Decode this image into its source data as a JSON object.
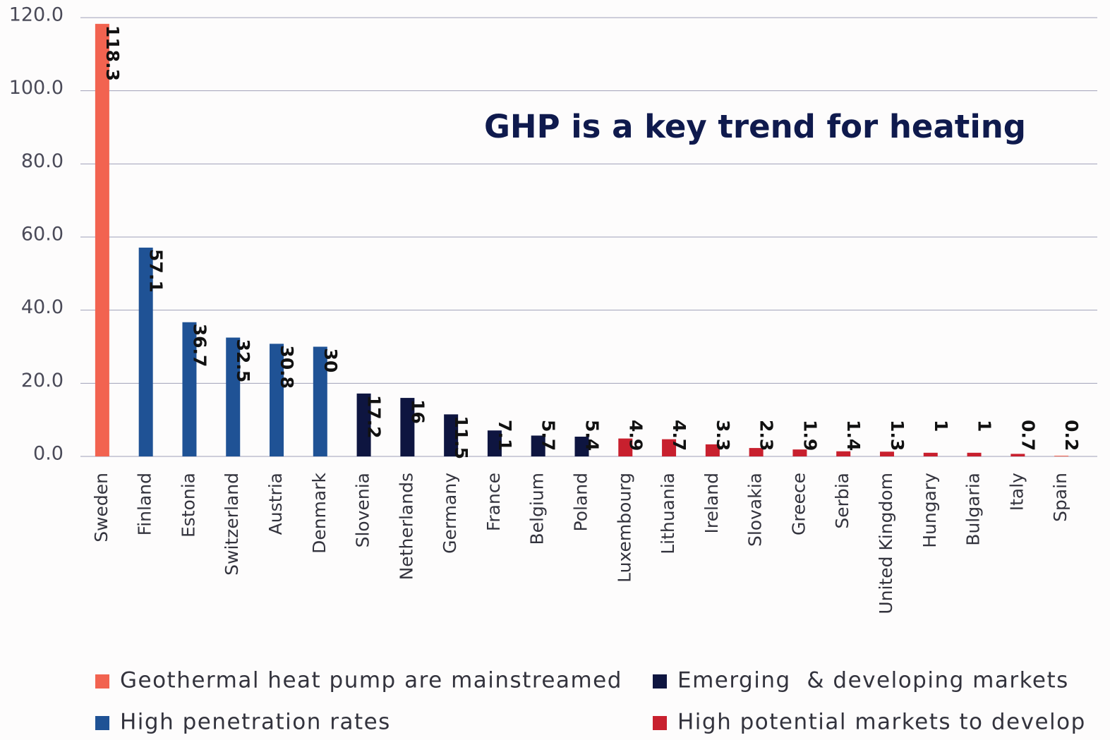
{
  "chart_data": {
    "type": "bar",
    "title": "GHP is a key trend for heating",
    "categories": [
      "Sweden",
      "Finland",
      "Estonia",
      "Switzerland",
      "Austria",
      "Denmark",
      "Slovenia",
      "Netherlands",
      "Germany",
      "France",
      "Belgium",
      "Poland",
      "Luxembourg",
      "Lithuania",
      "Ireland",
      "Slovakia",
      "Greece",
      "Serbia",
      "United Kingdom",
      "Hungary",
      "Bulgaria",
      "Italy",
      "Spain"
    ],
    "series": [
      {
        "name": "Geothermal heat pump are mainstreamed",
        "color": "#f26350",
        "values": [
          118.3,
          null,
          null,
          null,
          null,
          null,
          null,
          null,
          null,
          null,
          null,
          null,
          null,
          null,
          null,
          null,
          null,
          null,
          null,
          null,
          null,
          null,
          0.2
        ]
      },
      {
        "name": "Emerging  & developing markets",
        "color": "#0e1540",
        "values": [
          null,
          null,
          null,
          null,
          null,
          null,
          17.2,
          16,
          11.5,
          7.1,
          5.7,
          5.4,
          null,
          null,
          null,
          null,
          null,
          null,
          null,
          null,
          null,
          null,
          null
        ]
      },
      {
        "name": "High penetration rates",
        "color": "#1f5295",
        "values": [
          null,
          57.1,
          36.7,
          32.5,
          30.8,
          30,
          null,
          null,
          null,
          null,
          null,
          null,
          null,
          null,
          null,
          null,
          null,
          null,
          null,
          null,
          null,
          null,
          null
        ]
      },
      {
        "name": "High potential markets to develop",
        "color": "#c8202e",
        "values": [
          null,
          null,
          null,
          null,
          null,
          null,
          null,
          null,
          null,
          null,
          null,
          null,
          4.9,
          4.7,
          3.3,
          2.3,
          1.9,
          1.4,
          1.3,
          1,
          1,
          0.7,
          null
        ]
      }
    ],
    "ylim": [
      0,
      120
    ],
    "yticks": [
      {
        "value": 0,
        "label": "0.0"
      },
      {
        "value": 20,
        "label": "20.0"
      },
      {
        "value": 40,
        "label": "40.0"
      },
      {
        "value": 60,
        "label": "60.0"
      },
      {
        "value": 80,
        "label": "80.0"
      },
      {
        "value": 100,
        "label": "100.0"
      },
      {
        "value": 120,
        "label": "120.0"
      }
    ],
    "grid": true
  }
}
